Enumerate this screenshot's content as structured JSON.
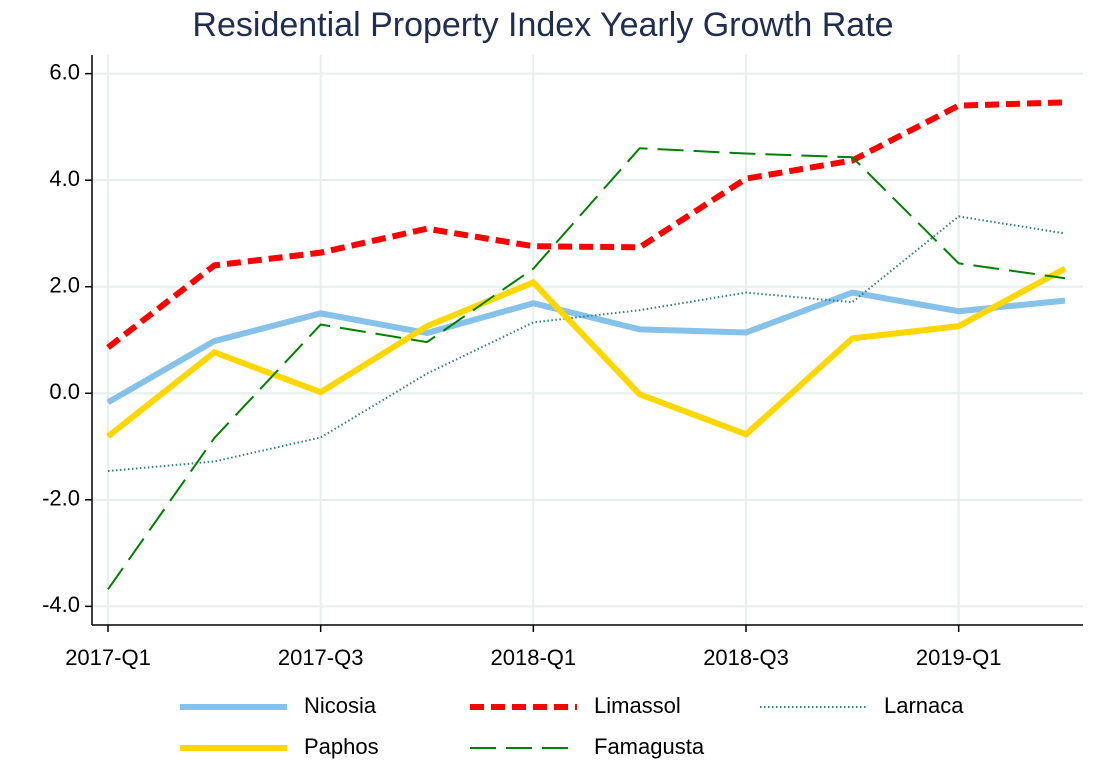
{
  "chart_data": {
    "type": "line",
    "title": "Residential Property Index Yearly Growth Rate",
    "categories": [
      "2017-Q1",
      null,
      "2017-Q3",
      null,
      "2018-Q1",
      null,
      "2018-Q3",
      null,
      "2019-Q1",
      null
    ],
    "ylim": [
      -4.35,
      6.35
    ],
    "yticks": [
      {
        "value": -4,
        "label": "-4.0"
      },
      {
        "value": -2,
        "label": "-2.0"
      },
      {
        "value": 0,
        "label": "0.0"
      },
      {
        "value": 2,
        "label": "2.0"
      },
      {
        "value": 4,
        "label": "4.0"
      },
      {
        "value": 6,
        "label": "6.0"
      }
    ],
    "grid": true,
    "legend": "bottom",
    "series": [
      {
        "name": "Nicosia",
        "color": "#85c1e9",
        "style": "solid",
        "width": "thick",
        "values": [
          -0.17,
          0.98,
          1.5,
          1.13,
          1.69,
          1.2,
          1.14,
          1.89,
          1.54,
          1.74
        ]
      },
      {
        "name": "Limassol",
        "color": "#ff0000",
        "style": "dashed",
        "width": "thick",
        "values": [
          0.86,
          2.4,
          2.64,
          3.09,
          2.76,
          2.74,
          4.03,
          4.37,
          5.4,
          5.46
        ]
      },
      {
        "name": "Larnaca",
        "color": "#2f7f7f",
        "style": "dotted",
        "width": "thin",
        "values": [
          -1.46,
          -1.28,
          -0.83,
          0.37,
          1.33,
          1.56,
          1.89,
          1.71,
          3.32,
          3.0
        ]
      },
      {
        "name": "Paphos",
        "color": "#ffd700",
        "style": "solid",
        "width": "thick",
        "values": [
          -0.81,
          0.77,
          0.02,
          1.26,
          2.08,
          -0.02,
          -0.77,
          1.03,
          1.26,
          2.34
        ]
      },
      {
        "name": "Famagusta",
        "color": "#008000",
        "style": "longdash",
        "width": "thin",
        "values": [
          -3.68,
          -0.84,
          1.29,
          0.96,
          2.34,
          4.6,
          4.5,
          4.43,
          2.44,
          2.16
        ]
      }
    ]
  }
}
